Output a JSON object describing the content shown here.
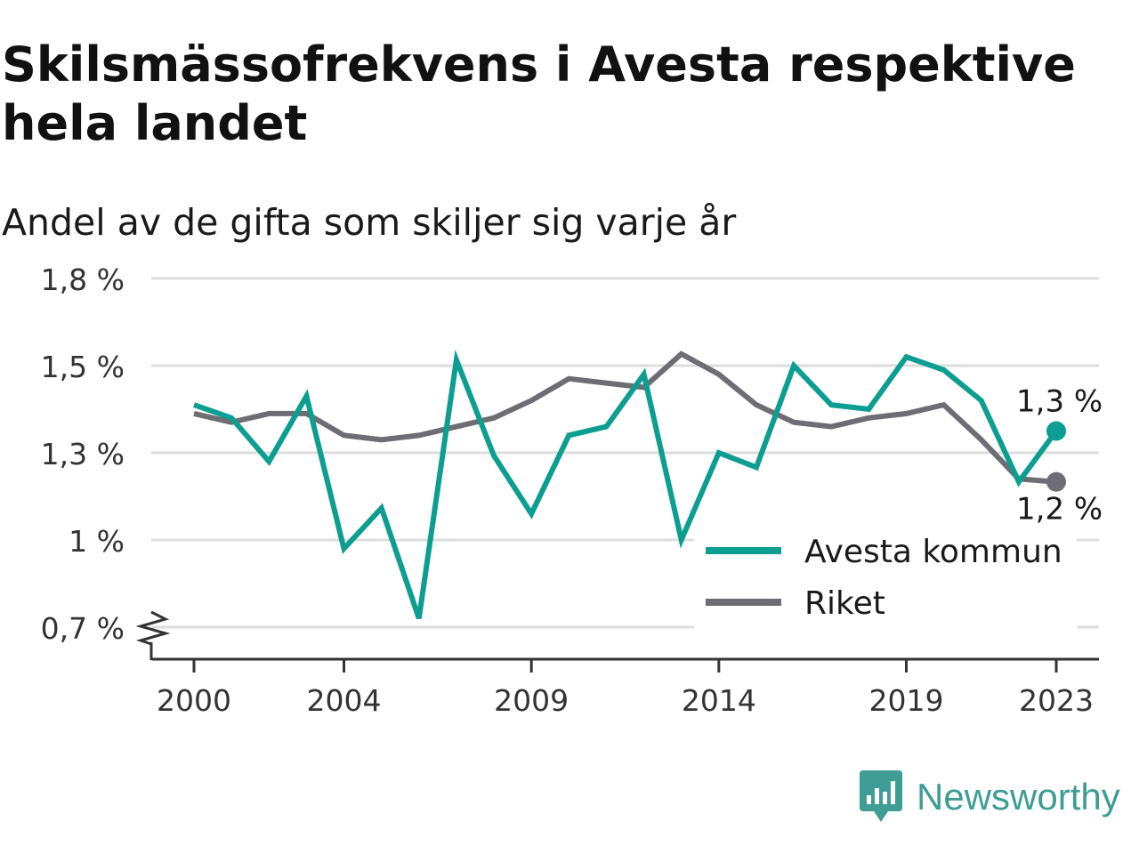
{
  "header": {
    "title": "Skilsmässofrekvens i Avesta respektive hela landet",
    "subtitle": "Andel av de gifta som skiljer sig varje år"
  },
  "brand": {
    "name": "Newsworthy",
    "color": "#3e9e95",
    "icon": "bar-chart-speech-bubble-icon"
  },
  "chart_data": {
    "type": "line",
    "x": [
      2000,
      2001,
      2002,
      2003,
      2004,
      2005,
      2006,
      2007,
      2008,
      2009,
      2010,
      2011,
      2012,
      2013,
      2014,
      2015,
      2016,
      2017,
      2018,
      2019,
      2020,
      2021,
      2022,
      2023
    ],
    "series": [
      {
        "name": "Avesta kommun",
        "color": "#0d9e92",
        "values": [
          1.41,
          1.38,
          1.27,
          1.43,
          0.97,
          1.11,
          0.73,
          1.52,
          1.29,
          1.09,
          1.34,
          1.36,
          1.48,
          1.0,
          1.3,
          1.25,
          1.5,
          1.41,
          1.4,
          1.53,
          1.49,
          1.42,
          1.2,
          1.35
        ]
      },
      {
        "name": "Riket",
        "color": "#6e6d73",
        "values": [
          1.39,
          1.37,
          1.39,
          1.39,
          1.34,
          1.33,
          1.34,
          1.36,
          1.38,
          1.42,
          1.47,
          1.46,
          1.45,
          1.54,
          1.48,
          1.41,
          1.37,
          1.36,
          1.38,
          1.39,
          1.41,
          1.33,
          1.21,
          1.2
        ]
      }
    ],
    "end_labels": [
      "1,3 %",
      "1,2 %"
    ],
    "y_ticks": [
      0.7,
      1.0,
      1.3,
      1.5,
      1.8
    ],
    "y_tick_labels": [
      "0,7 %",
      "1 %",
      "1,3 %",
      "1,5 %",
      "1,8 %"
    ],
    "x_ticks": [
      2000,
      2004,
      2009,
      2014,
      2019,
      2023
    ],
    "x_tick_labels": [
      "2000",
      "2004",
      "2009",
      "2014",
      "2019",
      "2023"
    ],
    "xlim": [
      2000,
      2023
    ],
    "ylim": [
      0.7,
      1.8
    ],
    "axis_break": true,
    "grid": "horizontal",
    "legend_position": "bottom-right"
  }
}
